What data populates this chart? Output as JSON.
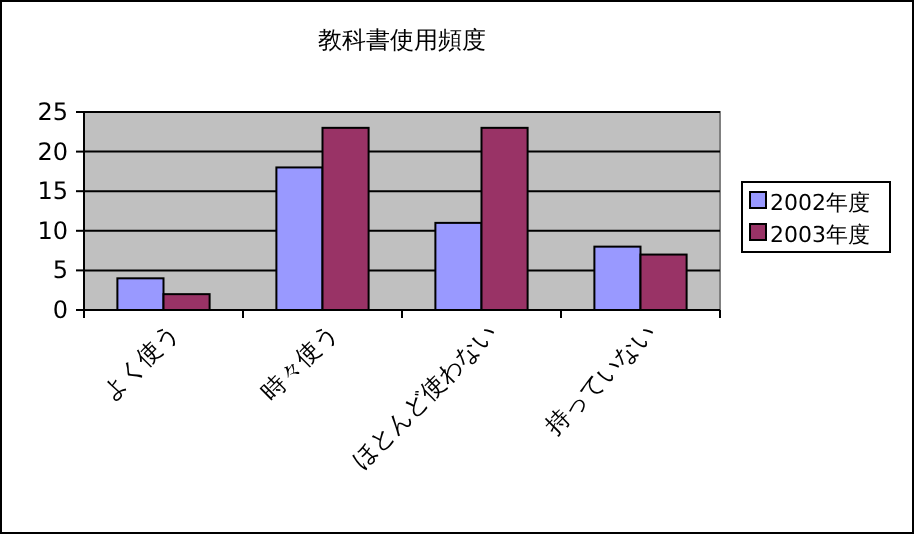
{
  "chart_data": {
    "type": "bar",
    "title": "教科書使用頻度",
    "categories": [
      "よく使う",
      "時々使う",
      "ほとんど使わない",
      "持っていない"
    ],
    "series": [
      {
        "name": "2002年度",
        "color": "#9999ff",
        "values": [
          4,
          18,
          11,
          8
        ]
      },
      {
        "name": "2003年度",
        "color": "#993366",
        "values": [
          2,
          23,
          23,
          7
        ]
      }
    ],
    "ylim": [
      0,
      25
    ],
    "yticks": [
      0,
      5,
      10,
      15,
      20,
      25
    ],
    "grid": "y",
    "legend": "right"
  }
}
